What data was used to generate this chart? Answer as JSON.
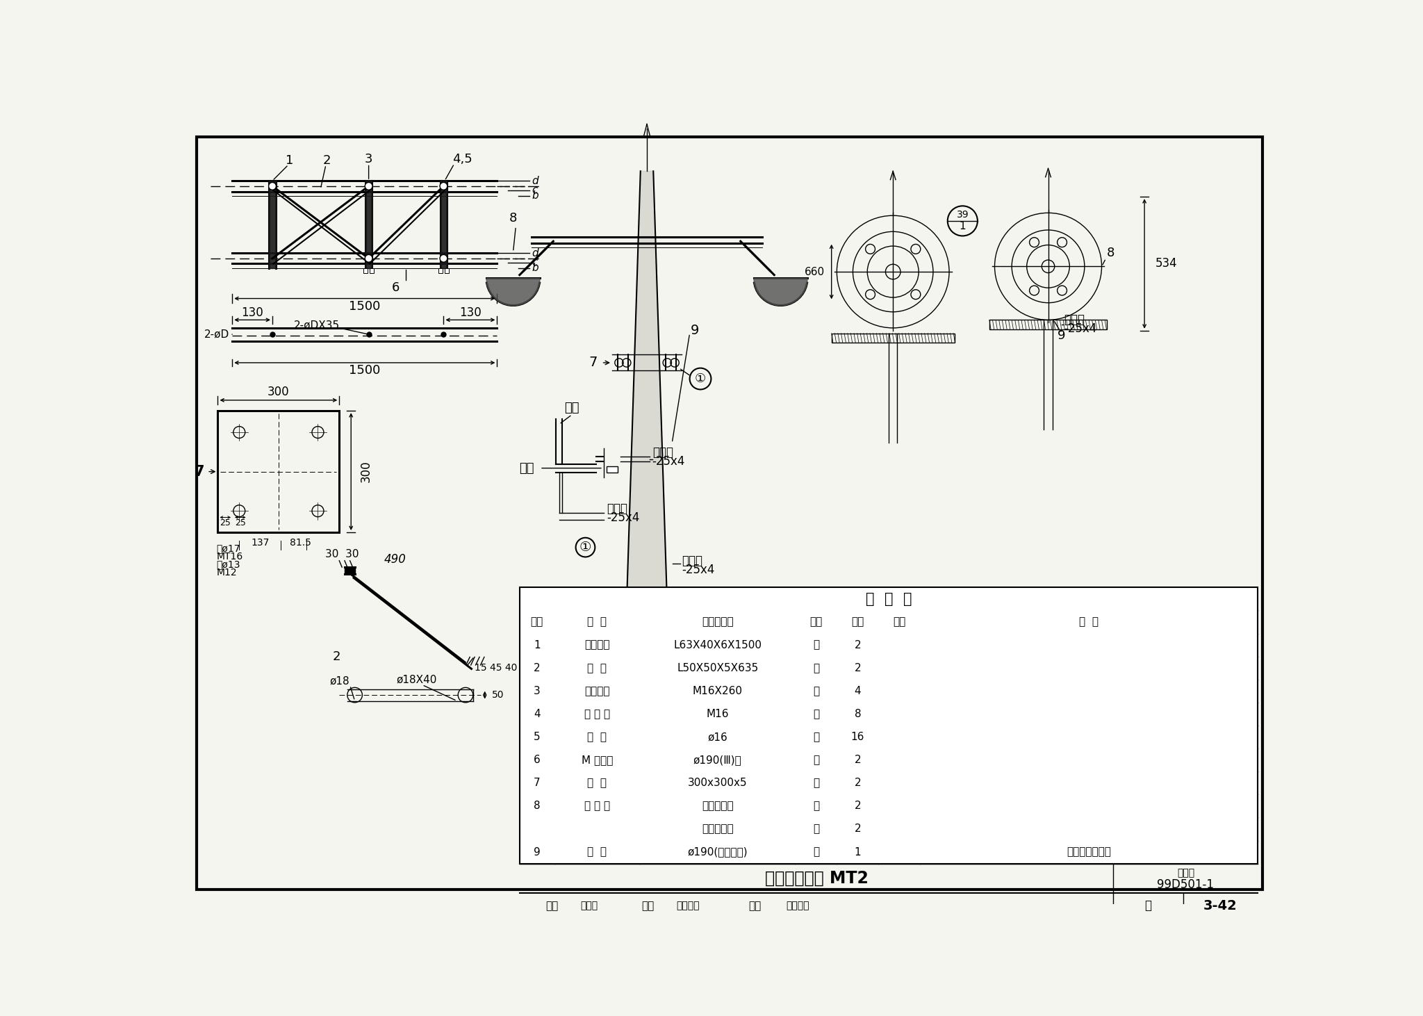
{
  "bg_color": "#f5f5f0",
  "border_color": "#000000",
  "title": "照明台构造图 MT2",
  "figure_number": "99D501-1",
  "page": "3-42",
  "col_headers": [
    "编号",
    "名  称",
    "型号及规格",
    "单位",
    "数量",
    "页次",
    "备  注"
  ],
  "row_data": [
    [
      "1",
      "角钢横担",
      "L63X40X6X1500",
      "根",
      "2",
      "",
      ""
    ],
    [
      "2",
      "横  撑",
      "L50X50X5X635",
      "根",
      "2",
      "",
      ""
    ],
    [
      "3",
      "方头螺栓",
      "M16X260",
      "个",
      "4",
      "",
      ""
    ],
    [
      "4",
      "方 螺 母",
      "M16",
      "个",
      "8",
      "",
      ""
    ],
    [
      "5",
      "垫  圈",
      "ø16",
      "个",
      "16",
      "",
      ""
    ],
    [
      "6",
      "M 型抱铁",
      "ø190(Ⅲ)型",
      "付",
      "2",
      "",
      ""
    ],
    [
      "7",
      "底  板",
      "300x300x5",
      "块",
      "2",
      "",
      ""
    ],
    [
      "8",
      "投 光 灯",
      "由工程选定",
      "台",
      "2",
      "",
      ""
    ],
    [
      "",
      "",
      "由工程选定",
      "台",
      "2",
      "",
      ""
    ],
    [
      "9",
      "电  杆",
      "ø190(电杆梢径)",
      "根",
      "1",
      "",
      "高度由工程选定"
    ]
  ]
}
